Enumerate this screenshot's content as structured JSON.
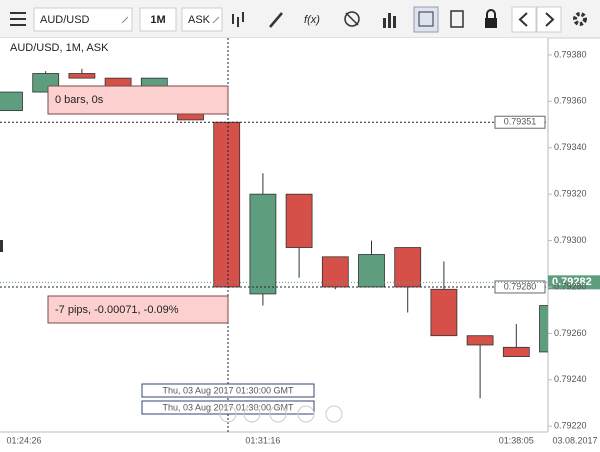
{
  "toolbar": {
    "symbol": "AUD/USD",
    "timeframe": "1M",
    "side": "ASK",
    "function": "f(x)"
  },
  "chart_data": {
    "type": "candlestick",
    "title": "AUD/USD, 1M, ASK",
    "categories": [
      "01:24:26",
      null,
      null,
      null,
      null,
      null,
      null,
      "01:31:16",
      null,
      null,
      null,
      null,
      null,
      null,
      "01:38:05",
      null
    ],
    "open": [
      0.79356,
      0.79364,
      0.79372,
      0.7937,
      0.79366,
      0.79366,
      0.79351,
      0.79277,
      0.7932,
      0.79293,
      0.7928,
      0.79297,
      0.79279,
      0.79259,
      0.79254,
      0.79252
    ],
    "high": [
      0.79364,
      0.79373,
      0.79374,
      0.7937,
      0.7937,
      0.79366,
      0.79351,
      0.79329,
      0.7932,
      0.79293,
      0.793,
      0.79297,
      0.79291,
      0.79259,
      0.79264,
      0.79272
    ],
    "low": [
      0.79356,
      0.79364,
      0.7937,
      0.79364,
      0.79366,
      0.79352,
      0.7928,
      0.79272,
      0.79284,
      0.79279,
      0.7928,
      0.79269,
      0.79259,
      0.79232,
      0.7925,
      0.79252
    ],
    "close": [
      0.79364,
      0.79372,
      0.7937,
      0.79364,
      0.7937,
      0.79352,
      0.7928,
      0.7932,
      0.79297,
      0.7928,
      0.79294,
      0.7928,
      0.79259,
      0.79255,
      0.7925,
      0.79272
    ],
    "up_color": "#5e9e7e",
    "down_color": "#d6504a",
    "ylim": [
      0.792175,
      0.793873
    ],
    "yticks": [
      {
        "value": 0.7938,
        "label": "0.79380"
      },
      {
        "value": 0.7936,
        "label": "0.79360"
      },
      {
        "value": 0.7934,
        "label": "0.79340"
      },
      {
        "value": 0.7932,
        "label": "0.79320"
      },
      {
        "value": 0.793,
        "label": "0.79300"
      },
      {
        "value": 0.7928,
        "label": "0.79280"
      },
      {
        "value": 0.7926,
        "label": "0.79260"
      },
      {
        "value": 0.7924,
        "label": "0.79240"
      },
      {
        "value": 0.7922,
        "label": "0.79220"
      }
    ],
    "date_label": "03.08.2017",
    "last_price": 0.79282,
    "crosshair": {
      "price_levels": [
        0.79351,
        {
          "value": 0.7928,
          "label": "0.79280"
        }
      ],
      "bars_label": "0 bars, 0s",
      "measure_label": "-7 pips, -0.00071, -0.09%",
      "time_labels": [
        "Thu, 03 Aug 2017 01:30:00 GMT",
        "Thu, 03 Aug 2017 01:30:00 GMT"
      ]
    }
  }
}
